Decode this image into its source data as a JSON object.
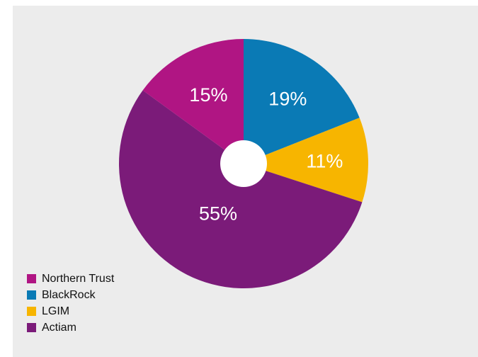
{
  "chart_data": {
    "type": "pie",
    "donut": true,
    "slices": [
      {
        "label": "BlackRock",
        "value": 19,
        "value_label": "19%",
        "color": "#0a7ab5"
      },
      {
        "label": "LGIM",
        "value": 11,
        "value_label": "11%",
        "color": "#f7b500"
      },
      {
        "label": "Actiam",
        "value": 55,
        "value_label": "55%",
        "color": "#7b1b79"
      },
      {
        "label": "Northern Trust",
        "value": 15,
        "value_label": "15%",
        "color": "#b01583"
      }
    ],
    "legend": [
      {
        "label": "Northern Trust",
        "color": "#b01583"
      },
      {
        "label": "BlackRock",
        "color": "#0a7ab5"
      },
      {
        "label": "LGIM",
        "color": "#f7b500"
      },
      {
        "label": "Actiam",
        "color": "#7b1b79"
      }
    ],
    "legend_position": "bottom-left",
    "start_angle_deg": 0,
    "direction": "clockwise"
  }
}
